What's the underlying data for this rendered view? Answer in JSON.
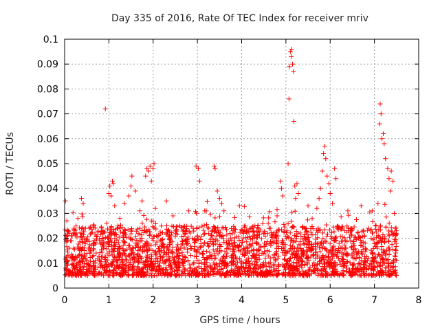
{
  "chart_data": {
    "type": "scatter",
    "title": "Day 335 of 2016, Rate Of TEC Index for receiver mriv",
    "xlabel": "GPS time / hours",
    "ylabel": "ROTI / TECUs",
    "xlim": [
      0,
      8
    ],
    "ylim": [
      0,
      0.1
    ],
    "x_ticks": [
      "0",
      "1",
      "2",
      "3",
      "4",
      "5",
      "6",
      "7",
      "8"
    ],
    "y_ticks": [
      "0",
      "0.01",
      "0.02",
      "0.03",
      "0.04",
      "0.05",
      "0.06",
      "0.07",
      "0.08",
      "0.09",
      "0.1"
    ],
    "grid": true,
    "marker": "+",
    "series": [
      {
        "name": "ROTI",
        "color": "#ff0000",
        "points": [
          [
            0.02,
            0.035
          ],
          [
            0.05,
            0.027
          ],
          [
            0.1,
            0.022
          ],
          [
            0.15,
            0.019
          ],
          [
            0.3,
            0.028
          ],
          [
            0.38,
            0.036
          ],
          [
            0.42,
            0.034
          ],
          [
            0.47,
            0.024
          ],
          [
            0.92,
            0.072
          ],
          [
            0.95,
            0.026
          ],
          [
            1.0,
            0.038
          ],
          [
            1.02,
            0.041
          ],
          [
            1.05,
            0.037
          ],
          [
            1.08,
            0.043
          ],
          [
            1.1,
            0.042
          ],
          [
            1.13,
            0.033
          ],
          [
            1.25,
            0.028
          ],
          [
            1.35,
            0.034
          ],
          [
            1.45,
            0.037
          ],
          [
            1.5,
            0.041
          ],
          [
            1.52,
            0.045
          ],
          [
            1.6,
            0.039
          ],
          [
            1.7,
            0.031
          ],
          [
            1.75,
            0.035
          ],
          [
            1.83,
            0.045
          ],
          [
            1.86,
            0.048
          ],
          [
            1.9,
            0.047
          ],
          [
            1.93,
            0.049
          ],
          [
            1.96,
            0.043
          ],
          [
            2.0,
            0.048
          ],
          [
            2.02,
            0.05
          ],
          [
            2.05,
            0.032
          ],
          [
            2.3,
            0.035
          ],
          [
            2.45,
            0.029
          ],
          [
            2.6,
            0.025
          ],
          [
            2.8,
            0.031
          ],
          [
            2.97,
            0.049
          ],
          [
            3.02,
            0.048
          ],
          [
            3.05,
            0.043
          ],
          [
            3.2,
            0.031
          ],
          [
            3.38,
            0.049
          ],
          [
            3.4,
            0.048
          ],
          [
            3.45,
            0.039
          ],
          [
            3.5,
            0.036
          ],
          [
            3.55,
            0.034
          ],
          [
            3.6,
            0.031
          ],
          [
            3.95,
            0.033
          ],
          [
            4.3,
            0.025
          ],
          [
            4.6,
            0.026
          ],
          [
            4.8,
            0.029
          ],
          [
            4.88,
            0.043
          ],
          [
            4.9,
            0.04
          ],
          [
            4.93,
            0.037
          ],
          [
            5.05,
            0.05
          ],
          [
            5.07,
            0.076
          ],
          [
            5.08,
            0.089
          ],
          [
            5.1,
            0.095
          ],
          [
            5.12,
            0.093
          ],
          [
            5.13,
            0.096
          ],
          [
            5.15,
            0.09
          ],
          [
            5.17,
            0.087
          ],
          [
            5.18,
            0.067
          ],
          [
            5.2,
            0.041
          ],
          [
            5.22,
            0.036
          ],
          [
            5.25,
            0.042
          ],
          [
            5.28,
            0.038
          ],
          [
            5.5,
            0.033
          ],
          [
            5.7,
            0.032
          ],
          [
            5.75,
            0.036
          ],
          [
            5.78,
            0.04
          ],
          [
            5.82,
            0.047
          ],
          [
            5.85,
            0.054
          ],
          [
            5.88,
            0.057
          ],
          [
            5.9,
            0.052
          ],
          [
            5.93,
            0.045
          ],
          [
            5.97,
            0.042
          ],
          [
            6.0,
            0.038
          ],
          [
            6.05,
            0.034
          ],
          [
            6.1,
            0.048
          ],
          [
            6.13,
            0.044
          ],
          [
            6.4,
            0.031
          ],
          [
            6.7,
            0.033
          ],
          [
            6.95,
            0.031
          ],
          [
            7.08,
            0.034
          ],
          [
            7.12,
            0.066
          ],
          [
            7.13,
            0.074
          ],
          [
            7.15,
            0.07
          ],
          [
            7.17,
            0.06
          ],
          [
            7.2,
            0.062
          ],
          [
            7.22,
            0.058
          ],
          [
            7.25,
            0.052
          ],
          [
            7.3,
            0.048
          ],
          [
            7.33,
            0.044
          ],
          [
            7.36,
            0.039
          ],
          [
            7.38,
            0.047
          ],
          [
            7.42,
            0.043
          ],
          [
            7.45,
            0.03
          ],
          [
            7.47,
            0.024
          ],
          [
            7.49,
            0.022
          ]
        ]
      }
    ],
    "dense_band": {
      "x_range": [
        0,
        7.5
      ],
      "typical_min": 0.005,
      "typical_max": 0.025
    }
  }
}
